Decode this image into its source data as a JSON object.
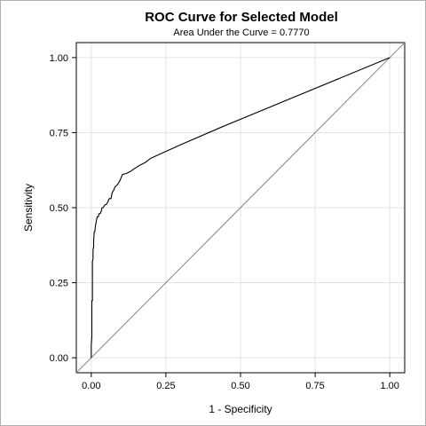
{
  "chart_data": {
    "type": "line",
    "title": "ROC Curve for Selected Model",
    "subtitle": "Area Under the Curve = 0.7770",
    "xlabel": "1 - Specificity",
    "ylabel": "Sensitivity",
    "xlim": [
      -0.05,
      1.05
    ],
    "ylim": [
      -0.05,
      1.05
    ],
    "xticks": [
      "0.00",
      "0.25",
      "0.50",
      "0.75",
      "1.00"
    ],
    "yticks": [
      "0.00",
      "0.25",
      "0.50",
      "0.75",
      "1.00"
    ],
    "grid": true,
    "series": [
      {
        "values_x": [
          0.0,
          0.0,
          0.002,
          0.002,
          0.004,
          0.004,
          0.006,
          0.006,
          0.008,
          0.008,
          0.01,
          0.012,
          0.014,
          0.016,
          0.018,
          0.02,
          0.024,
          0.026,
          0.03,
          0.034,
          0.036,
          0.04,
          0.046,
          0.05,
          0.056,
          0.06,
          0.066,
          0.07,
          0.076,
          0.08,
          0.086,
          0.09,
          0.096,
          0.1,
          0.104,
          0.11,
          0.12,
          0.13,
          0.14,
          0.16,
          0.18,
          0.2,
          0.3,
          0.44,
          1.0
        ],
        "values_y": [
          0.0,
          0.04,
          0.07,
          0.19,
          0.19,
          0.32,
          0.33,
          0.36,
          0.37,
          0.39,
          0.42,
          0.42,
          0.44,
          0.45,
          0.46,
          0.47,
          0.47,
          0.48,
          0.48,
          0.49,
          0.5,
          0.5,
          0.51,
          0.51,
          0.52,
          0.53,
          0.53,
          0.55,
          0.56,
          0.57,
          0.575,
          0.58,
          0.59,
          0.6,
          0.61,
          0.612,
          0.615,
          0.62,
          0.627,
          0.64,
          0.65,
          0.665,
          0.71,
          0.77,
          1.0
        ],
        "color": "#000000"
      },
      {
        "values_x": [
          -0.05,
          1.05
        ],
        "values_y": [
          -0.05,
          1.05
        ],
        "color": "#8c8c8c"
      }
    ]
  }
}
